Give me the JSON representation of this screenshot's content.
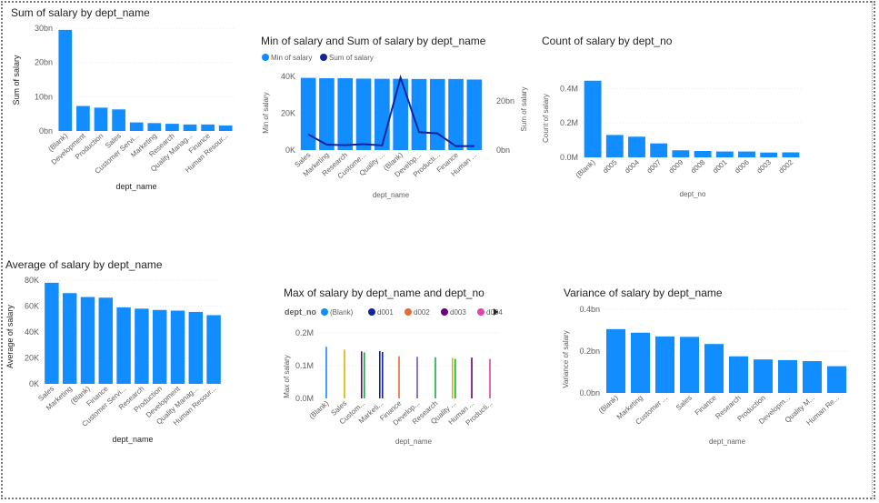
{
  "colors": {
    "bar": "#118DFF",
    "dark": "#12239E",
    "grid": "#e9e9e9"
  },
  "chart_data": [
    {
      "type": "bar",
      "title": "Sum of salary by dept_name",
      "xlabel": "dept_name",
      "ylabel": "Sum of salary",
      "categories": [
        "(Blank)",
        "Development",
        "Production",
        "Sales",
        "Customer Servi...",
        "Marketing",
        "Research",
        "Quality Manag...",
        "Finance",
        "Human Resour..."
      ],
      "values": [
        29.5,
        7.3,
        6.8,
        6.3,
        2.5,
        2.3,
        2.1,
        1.9,
        1.9,
        1.6
      ],
      "ylim": [
        0,
        30
      ],
      "yticks": [
        0,
        10,
        20,
        30
      ],
      "ytick_labels": [
        "0bn",
        "10bn",
        "20bn",
        "30bn"
      ]
    },
    {
      "type": "bar+line",
      "title": "Min of salary and Sum of salary by dept_name",
      "xlabel": "dept_name",
      "ylabel": "Min of salary",
      "y2label": "Sum of salary",
      "legend": [
        "Min of salary",
        "Sum of salary"
      ],
      "legend_position": "top-left",
      "categories": [
        "Sales",
        "Marketing",
        "Research",
        "Custome...",
        "Quality ...",
        "(Blank)",
        "Develop...",
        "Producti...",
        "Finance",
        "Human ..."
      ],
      "values": [
        39200,
        39000,
        39000,
        38800,
        38700,
        38700,
        38600,
        38600,
        38600,
        38300
      ],
      "line_values": [
        6.4,
        2.2,
        2.0,
        2.4,
        1.9,
        29.5,
        7.3,
        6.8,
        1.6,
        1.6
      ],
      "ylim": [
        0,
        40000
      ],
      "yticks": [
        0,
        20000,
        40000
      ],
      "ytick_labels": [
        "0K",
        "20K",
        "40K"
      ],
      "y2lim": [
        0,
        30
      ],
      "y2ticks": [
        0,
        20
      ],
      "y2tick_labels": [
        "0bn",
        "20bn"
      ]
    },
    {
      "type": "bar",
      "title": "Count of salary by dept_no",
      "xlabel": "dept_no",
      "ylabel": "Count of salary",
      "categories": [
        "(Blank)",
        "d005",
        "d004",
        "d007",
        "d009",
        "d008",
        "d001",
        "d006",
        "d003",
        "d002"
      ],
      "values": [
        0.445,
        0.13,
        0.12,
        0.081,
        0.041,
        0.037,
        0.034,
        0.034,
        0.028,
        0.029
      ],
      "ylim": [
        0,
        0.47
      ],
      "yticks": [
        0,
        0.2,
        0.4
      ],
      "ytick_labels": [
        "0.0M",
        "0.2M",
        "0.4M"
      ]
    },
    {
      "type": "bar",
      "title": "Average of salary by dept_name",
      "xlabel": "dept_name",
      "ylabel": "Average of salary",
      "categories": [
        "Sales",
        "Marketing",
        "(Blank)",
        "Finance",
        "Customer Servi...",
        "Research",
        "Production",
        "Development",
        "Quality Manag...",
        "Human Resour..."
      ],
      "values": [
        78000,
        70000,
        67000,
        66500,
        59000,
        58000,
        57000,
        56500,
        55500,
        53000
      ],
      "ylim": [
        0,
        80000
      ],
      "yticks": [
        0,
        20000,
        40000,
        60000,
        80000
      ],
      "ytick_labels": [
        "0K",
        "20K",
        "40K",
        "60K",
        "80K"
      ]
    },
    {
      "type": "bar",
      "title": "Max of salary by dept_name and dept_no",
      "xlabel": "dept_name",
      "ylabel": "Max of salary",
      "legend_title": "dept_no",
      "legend": [
        "(Blank)",
        "d001",
        "d002",
        "d003",
        "d004"
      ],
      "legend_colors": [
        "#118DFF",
        "#12239E",
        "#E66C37",
        "#6B007B",
        "#E044A7"
      ],
      "legend_position": "top-left",
      "categories": [
        "(Blank)",
        "Sales",
        "Custom...",
        "Marketi...",
        "Finance",
        "Develop...",
        "Research",
        "Quality ...",
        "Human ...",
        "Producti..."
      ],
      "values": [
        0.158,
        0.149,
        0.144,
        0.145,
        0.129,
        0.127,
        0.126,
        0.124,
        0.125,
        0.121
      ],
      "bar_colors": [
        "#118DFF",
        "#D9B300",
        "#6B007B",
        "#12239E",
        "#E66C37",
        "#744EC2",
        "#1AAB40",
        "#D9B300",
        "#6B007B",
        "#E044A7"
      ],
      "bar_colors_b": [
        "",
        "",
        "#1AAB40",
        "#12239E",
        "",
        "",
        "",
        "#1AAB40",
        "",
        ""
      ],
      "ylim": [
        0,
        0.22
      ],
      "yticks": [
        0,
        0.1,
        0.2
      ],
      "ytick_labels": [
        "0.0M",
        "0.1M",
        "0.2M"
      ]
    },
    {
      "type": "bar",
      "title": "Variance of salary by dept_name",
      "xlabel": "dept_name",
      "ylabel": "Variance of salary",
      "categories": [
        "(Blank)",
        "Marketing",
        "Customer ...",
        "Sales",
        "Finance",
        "Research",
        "Production",
        "Developm...",
        "Quality M...",
        "Human Re..."
      ],
      "values": [
        0.305,
        0.288,
        0.27,
        0.268,
        0.234,
        0.175,
        0.16,
        0.157,
        0.152,
        0.128
      ],
      "ylim": [
        0,
        0.4
      ],
      "yticks": [
        0,
        0.2,
        0.4
      ],
      "ytick_labels": [
        "0.0bn",
        "0.2bn",
        "0.4bn"
      ]
    }
  ]
}
